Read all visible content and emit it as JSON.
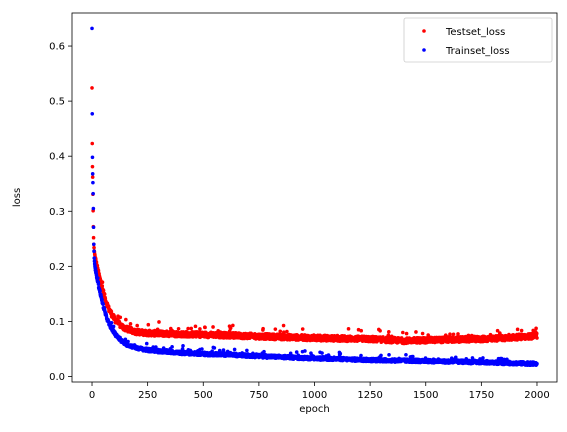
{
  "chart_data": {
    "type": "scatter",
    "title": "",
    "xlabel": "epoch",
    "ylabel": "loss",
    "xlim": [
      -90,
      2090
    ],
    "ylim": [
      -0.01,
      0.66
    ],
    "xticks": [
      "0",
      "250",
      "500",
      "750",
      "1000",
      "1250",
      "1500",
      "1750",
      "2000"
    ],
    "yticks": [
      "0.0",
      "0.1",
      "0.2",
      "0.3",
      "0.4",
      "0.5",
      "0.6"
    ],
    "grid": false,
    "legend_position": "top-right",
    "series": [
      {
        "name": "Testset_loss",
        "color": "#ff0000",
        "marker": "dot",
        "x_range": [
          0,
          2000
        ],
        "points": [
          [
            0,
            0.524
          ],
          [
            1,
            0.423
          ],
          [
            2,
            0.381
          ],
          [
            3,
            0.362
          ],
          [
            4,
            0.331
          ],
          [
            5,
            0.301
          ],
          [
            6,
            0.272
          ],
          [
            7,
            0.252
          ],
          [
            8,
            0.24
          ],
          [
            10,
            0.228
          ],
          [
            12,
            0.221
          ],
          [
            15,
            0.214
          ],
          [
            20,
            0.204
          ],
          [
            25,
            0.195
          ],
          [
            30,
            0.186
          ],
          [
            40,
            0.17
          ],
          [
            50,
            0.155
          ],
          [
            60,
            0.14
          ],
          [
            75,
            0.123
          ],
          [
            100,
            0.105
          ],
          [
            125,
            0.094
          ],
          [
            150,
            0.087
          ],
          [
            200,
            0.081
          ],
          [
            250,
            0.079
          ],
          [
            300,
            0.078
          ],
          [
            400,
            0.077
          ],
          [
            500,
            0.076
          ],
          [
            600,
            0.075
          ],
          [
            750,
            0.073
          ],
          [
            1000,
            0.07
          ],
          [
            1250,
            0.068
          ],
          [
            1400,
            0.065
          ],
          [
            1500,
            0.066
          ],
          [
            1750,
            0.068
          ],
          [
            1900,
            0.071
          ],
          [
            2000,
            0.074
          ]
        ],
        "spread": 0.005
      },
      {
        "name": "Trainset_loss",
        "color": "#0000ff",
        "marker": "dot",
        "x_range": [
          0,
          2000
        ],
        "points": [
          [
            0,
            0.632
          ],
          [
            1,
            0.477
          ],
          [
            2,
            0.398
          ],
          [
            3,
            0.368
          ],
          [
            4,
            0.352
          ],
          [
            5,
            0.332
          ],
          [
            6,
            0.305
          ],
          [
            7,
            0.271
          ],
          [
            8,
            0.24
          ],
          [
            10,
            0.215
          ],
          [
            12,
            0.2
          ],
          [
            15,
            0.193
          ],
          [
            20,
            0.185
          ],
          [
            25,
            0.175
          ],
          [
            30,
            0.164
          ],
          [
            40,
            0.146
          ],
          [
            50,
            0.129
          ],
          [
            60,
            0.114
          ],
          [
            75,
            0.097
          ],
          [
            100,
            0.079
          ],
          [
            125,
            0.067
          ],
          [
            150,
            0.059
          ],
          [
            200,
            0.052
          ],
          [
            250,
            0.048
          ],
          [
            300,
            0.046
          ],
          [
            400,
            0.043
          ],
          [
            500,
            0.041
          ],
          [
            600,
            0.04
          ],
          [
            750,
            0.037
          ],
          [
            1000,
            0.033
          ],
          [
            1250,
            0.03
          ],
          [
            1500,
            0.028
          ],
          [
            1750,
            0.026
          ],
          [
            2000,
            0.023
          ]
        ],
        "spread": 0.003
      }
    ]
  }
}
